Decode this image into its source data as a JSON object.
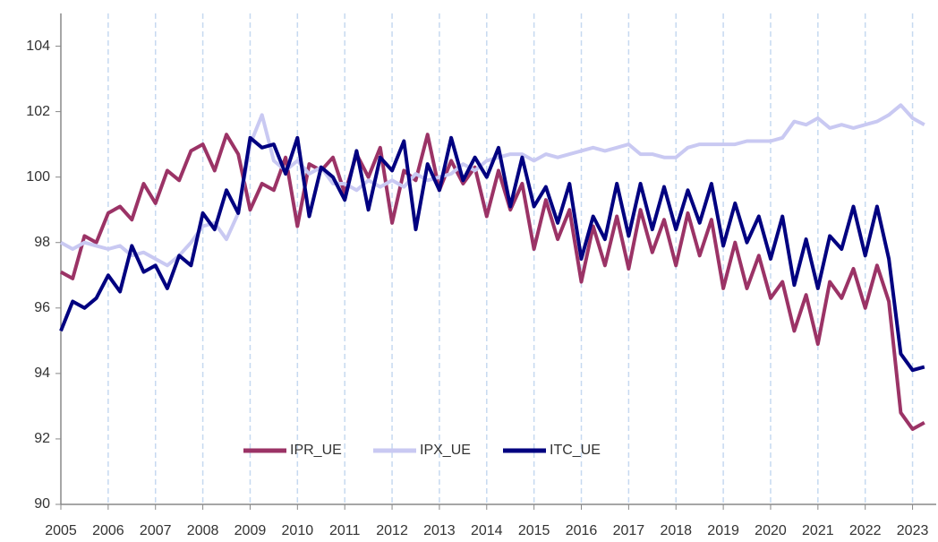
{
  "chart_data": {
    "type": "line",
    "x": [
      2005,
      2005.25,
      2005.5,
      2005.75,
      2006,
      2006.25,
      2006.5,
      2006.75,
      2007,
      2007.25,
      2007.5,
      2007.75,
      2008,
      2008.25,
      2008.5,
      2008.75,
      2009,
      2009.25,
      2009.5,
      2009.75,
      2010,
      2010.25,
      2010.5,
      2010.75,
      2011,
      2011.25,
      2011.5,
      2011.75,
      2012,
      2012.25,
      2012.5,
      2012.75,
      2013,
      2013.25,
      2013.5,
      2013.75,
      2014,
      2014.25,
      2014.5,
      2014.75,
      2015,
      2015.25,
      2015.5,
      2015.75,
      2016,
      2016.25,
      2016.5,
      2016.75,
      2017,
      2017.25,
      2017.5,
      2017.75,
      2018,
      2018.25,
      2018.5,
      2018.75,
      2019,
      2019.25,
      2019.5,
      2019.75,
      2020,
      2020.25,
      2020.5,
      2020.75,
      2021,
      2021.25,
      2021.5,
      2021.75,
      2022,
      2022.25,
      2022.5,
      2022.75,
      2023,
      2023.25
    ],
    "series": [
      {
        "name": "IPR_UE",
        "color": "#9b3366",
        "values": [
          97.1,
          96.9,
          98.2,
          98.0,
          98.9,
          99.1,
          98.7,
          99.8,
          99.2,
          100.2,
          99.9,
          100.8,
          101.0,
          100.2,
          101.3,
          100.7,
          99.0,
          99.8,
          99.6,
          100.6,
          98.5,
          100.4,
          100.2,
          100.6,
          99.5,
          100.7,
          100.0,
          100.9,
          98.6,
          100.2,
          99.9,
          101.3,
          99.6,
          100.5,
          99.8,
          100.3,
          98.8,
          100.2,
          99.0,
          99.8,
          97.8,
          99.3,
          98.1,
          99.0,
          96.8,
          98.5,
          97.3,
          98.8,
          97.2,
          99.0,
          97.7,
          98.7,
          97.3,
          98.9,
          97.6,
          98.7,
          96.6,
          98.0,
          96.6,
          97.6,
          96.3,
          96.8,
          95.3,
          96.4,
          94.9,
          96.8,
          96.3,
          97.2,
          96.0,
          97.3,
          96.2,
          92.8,
          92.3,
          92.5
        ]
      },
      {
        "name": "IPX_UE",
        "color": "#c9c9f2",
        "values": [
          98.0,
          97.8,
          98.0,
          97.9,
          97.8,
          97.9,
          97.6,
          97.7,
          97.5,
          97.3,
          97.6,
          98.0,
          98.5,
          98.6,
          98.1,
          98.9,
          101.0,
          101.9,
          100.5,
          100.2,
          100.5,
          100.1,
          100.3,
          99.8,
          99.8,
          99.6,
          99.9,
          99.7,
          99.9,
          99.7,
          100.1,
          99.9,
          100.0,
          100.1,
          100.4,
          100.2,
          100.5,
          100.6,
          100.7,
          100.7,
          100.5,
          100.7,
          100.6,
          100.7,
          100.8,
          100.9,
          100.8,
          100.9,
          101.0,
          100.7,
          100.7,
          100.6,
          100.6,
          100.9,
          101.0,
          101.0,
          101.0,
          101.0,
          101.1,
          101.1,
          101.1,
          101.2,
          101.7,
          101.6,
          101.8,
          101.5,
          101.6,
          101.5,
          101.6,
          101.7,
          101.9,
          102.2,
          101.8,
          101.6
        ]
      },
      {
        "name": "ITC_UE",
        "color": "#000080",
        "values": [
          95.3,
          96.2,
          96.0,
          96.3,
          97.0,
          96.5,
          97.9,
          97.1,
          97.3,
          96.6,
          97.6,
          97.3,
          98.9,
          98.4,
          99.6,
          98.9,
          101.2,
          100.9,
          101.0,
          100.1,
          101.2,
          98.8,
          100.3,
          100.0,
          99.3,
          100.8,
          99.0,
          100.6,
          100.2,
          101.1,
          98.4,
          100.4,
          99.6,
          101.2,
          99.9,
          100.6,
          100.0,
          100.9,
          99.1,
          100.6,
          99.1,
          99.7,
          98.6,
          99.8,
          97.5,
          98.8,
          98.1,
          99.8,
          98.2,
          99.8,
          98.4,
          99.7,
          98.4,
          99.6,
          98.6,
          99.8,
          97.9,
          99.2,
          98.0,
          98.8,
          97.5,
          98.8,
          96.7,
          98.1,
          96.6,
          98.2,
          97.8,
          99.1,
          97.6,
          99.1,
          97.5,
          94.6,
          94.1,
          94.2
        ]
      }
    ],
    "xlim": [
      2005,
      2023.5
    ],
    "xticks": [
      2005,
      2006,
      2007,
      2008,
      2009,
      2010,
      2011,
      2012,
      2013,
      2014,
      2015,
      2016,
      2017,
      2018,
      2019,
      2020,
      2021,
      2022,
      2023
    ],
    "ylim": [
      90,
      105
    ],
    "yticks": [
      90,
      92,
      94,
      96,
      98,
      100,
      102,
      104
    ],
    "grid": true,
    "legend": "bottom"
  }
}
